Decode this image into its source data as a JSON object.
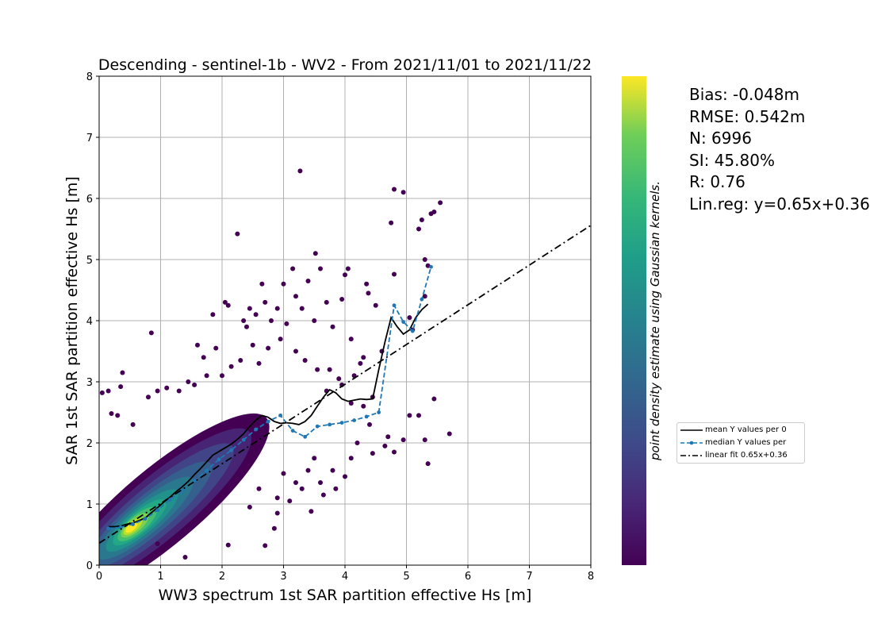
{
  "chart_data": {
    "type": "scatter",
    "title": "Descending - sentinel-1b - WV2 - From 2021/11/01 to 2021/11/22",
    "xlabel": "WW3 spectrum 1st SAR partition effective Hs [m]",
    "ylabel": "SAR 1st SAR partition effective Hs [m]",
    "xlim": [
      0,
      8
    ],
    "ylim": [
      0,
      8
    ],
    "xticks": [
      "0",
      "1",
      "2",
      "3",
      "4",
      "5",
      "6",
      "7",
      "8"
    ],
    "yticks": [
      "0",
      "1",
      "2",
      "3",
      "4",
      "5",
      "6",
      "7",
      "8"
    ],
    "grid": true,
    "colormap": "viridis",
    "colorbar_label": "point density estimate using Gaussian kernels.",
    "colors": {
      "mean_line": "#000000",
      "median_line": "#1f77b4",
      "fit_line": "#000000",
      "grid": "#b0b0b0",
      "low_density": "#440154",
      "high_density": "#fde725"
    },
    "n_points": 6996,
    "outlier_points": [
      [
        0.05,
        2.82
      ],
      [
        0.15,
        2.85
      ],
      [
        0.35,
        2.92
      ],
      [
        0.38,
        3.15
      ],
      [
        0.2,
        2.48
      ],
      [
        0.3,
        2.45
      ],
      [
        0.55,
        2.3
      ],
      [
        0.85,
        3.8
      ],
      [
        0.8,
        2.75
      ],
      [
        0.95,
        2.85
      ],
      [
        1.1,
        2.9
      ],
      [
        1.3,
        2.85
      ],
      [
        1.45,
        3.0
      ],
      [
        1.6,
        3.6
      ],
      [
        1.7,
        3.4
      ],
      [
        1.9,
        3.55
      ],
      [
        1.85,
        4.1
      ],
      [
        2.05,
        4.3
      ],
      [
        2.1,
        4.25
      ],
      [
        2.25,
        5.42
      ],
      [
        2.35,
        4.0
      ],
      [
        2.4,
        3.9
      ],
      [
        2.45,
        4.2
      ],
      [
        2.55,
        4.1
      ],
      [
        2.65,
        4.6
      ],
      [
        2.7,
        4.3
      ],
      [
        2.8,
        4.0
      ],
      [
        2.9,
        4.2
      ],
      [
        3.0,
        4.6
      ],
      [
        3.05,
        3.95
      ],
      [
        3.15,
        4.85
      ],
      [
        3.2,
        4.4
      ],
      [
        3.27,
        6.45
      ],
      [
        3.3,
        4.2
      ],
      [
        3.4,
        4.65
      ],
      [
        3.5,
        4.0
      ],
      [
        3.52,
        5.1
      ],
      [
        3.6,
        4.85
      ],
      [
        3.7,
        4.3
      ],
      [
        3.8,
        3.9
      ],
      [
        3.95,
        4.35
      ],
      [
        4.0,
        4.75
      ],
      [
        4.05,
        4.85
      ],
      [
        4.1,
        3.7
      ],
      [
        4.3,
        3.4
      ],
      [
        4.35,
        4.6
      ],
      [
        4.38,
        4.45
      ],
      [
        4.3,
        2.6
      ],
      [
        4.4,
        2.3
      ],
      [
        4.45,
        1.83
      ],
      [
        4.2,
        2.0
      ],
      [
        4.1,
        1.75
      ],
      [
        3.8,
        1.55
      ],
      [
        3.6,
        1.35
      ],
      [
        3.3,
        1.25
      ],
      [
        3.1,
        1.05
      ],
      [
        2.85,
        0.6
      ],
      [
        2.9,
        0.85
      ],
      [
        2.7,
        0.32
      ],
      [
        2.1,
        0.33
      ],
      [
        1.4,
        0.13
      ],
      [
        0.95,
        0.35
      ],
      [
        3.45,
        0.88
      ],
      [
        2.9,
        1.1
      ],
      [
        4.45,
        2.75
      ],
      [
        4.5,
        4.25
      ],
      [
        4.8,
        6.15
      ],
      [
        4.75,
        5.6
      ],
      [
        4.8,
        4.76
      ],
      [
        4.95,
        6.1
      ],
      [
        5.05,
        4.05
      ],
      [
        5.1,
        3.85
      ],
      [
        5.2,
        5.5
      ],
      [
        5.25,
        5.65
      ],
      [
        5.3,
        5.0
      ],
      [
        5.35,
        4.9
      ],
      [
        5.4,
        5.75
      ],
      [
        5.45,
        5.78
      ],
      [
        5.55,
        5.93
      ],
      [
        5.3,
        4.4
      ],
      [
        5.05,
        2.45
      ],
      [
        5.2,
        2.45
      ],
      [
        4.95,
        2.05
      ],
      [
        5.3,
        2.05
      ],
      [
        5.35,
        1.66
      ],
      [
        5.45,
        2.72
      ],
      [
        5.7,
        2.15
      ],
      [
        4.65,
        1.95
      ],
      [
        4.7,
        2.1
      ],
      [
        4.8,
        1.85
      ],
      [
        3.75,
        3.2
      ],
      [
        3.9,
        3.05
      ],
      [
        4.15,
        3.1
      ],
      [
        4.25,
        3.3
      ],
      [
        4.6,
        3.5
      ],
      [
        2.5,
        3.6
      ],
      [
        2.6,
        3.3
      ],
      [
        2.75,
        3.55
      ],
      [
        2.95,
        3.7
      ],
      [
        3.2,
        3.5
      ],
      [
        3.35,
        3.35
      ],
      [
        3.55,
        3.2
      ],
      [
        3.7,
        2.85
      ],
      [
        2.3,
        3.35
      ],
      [
        2.15,
        3.25
      ],
      [
        2.0,
        3.1
      ],
      [
        1.75,
        3.1
      ],
      [
        1.55,
        2.95
      ],
      [
        3.0,
        1.5
      ],
      [
        3.2,
        1.35
      ],
      [
        3.4,
        1.55
      ],
      [
        3.65,
        1.15
      ],
      [
        3.85,
        1.25
      ],
      [
        4.0,
        1.45
      ],
      [
        3.95,
        2.95
      ],
      [
        4.1,
        2.65
      ],
      [
        3.5,
        1.75
      ],
      [
        2.6,
        1.25
      ],
      [
        2.45,
        0.95
      ]
    ],
    "series": [
      {
        "name": "mean Y values per 0",
        "style": "solid",
        "x": [
          0.15,
          0.25,
          0.35,
          0.45,
          0.55,
          0.65,
          0.75,
          0.85,
          0.95,
          1.05,
          1.15,
          1.25,
          1.35,
          1.45,
          1.55,
          1.65,
          1.75,
          1.85,
          1.95,
          2.05,
          2.15,
          2.25,
          2.35,
          2.45,
          2.55,
          2.65,
          2.75,
          2.85,
          2.95,
          3.05,
          3.15,
          3.25,
          3.35,
          3.45,
          3.55,
          3.65,
          3.75,
          3.85,
          3.95,
          4.05,
          4.15,
          4.25,
          4.35,
          4.45,
          4.55,
          4.65,
          4.75,
          4.85,
          4.95,
          5.05,
          5.15,
          5.25,
          5.35
        ],
        "y": [
          0.63,
          0.63,
          0.64,
          0.67,
          0.69,
          0.73,
          0.77,
          0.86,
          0.94,
          1.03,
          1.11,
          1.2,
          1.28,
          1.37,
          1.48,
          1.58,
          1.69,
          1.8,
          1.86,
          1.92,
          1.98,
          2.06,
          2.15,
          2.27,
          2.37,
          2.45,
          2.42,
          2.35,
          2.32,
          2.33,
          2.32,
          2.3,
          2.35,
          2.45,
          2.6,
          2.75,
          2.87,
          2.82,
          2.72,
          2.68,
          2.7,
          2.72,
          2.71,
          2.72,
          3.2,
          3.65,
          4.05,
          3.9,
          3.78,
          3.85,
          4.05,
          4.18,
          4.27
        ]
      },
      {
        "name": "median Y values per",
        "style": "dashed",
        "x": [
          0.15,
          0.35,
          0.55,
          0.75,
          0.95,
          1.15,
          1.35,
          1.55,
          1.75,
          1.95,
          2.15,
          2.35,
          2.55,
          2.75,
          2.95,
          3.15,
          3.35,
          3.55,
          3.75,
          3.95,
          4.15,
          4.35,
          4.55,
          4.8,
          4.95,
          5.1,
          5.25,
          5.4
        ],
        "y": [
          0.6,
          0.62,
          0.67,
          0.76,
          0.9,
          1.07,
          1.22,
          1.38,
          1.55,
          1.73,
          1.88,
          2.05,
          2.22,
          2.35,
          2.45,
          2.2,
          2.1,
          2.27,
          2.3,
          2.33,
          2.37,
          2.43,
          2.5,
          4.25,
          3.98,
          3.83,
          4.35,
          4.88
        ]
      },
      {
        "name": "linear fit 0.65x+0.36",
        "style": "dashdot",
        "slope": 0.65,
        "intercept": 0.36,
        "x": [
          0,
          8
        ],
        "y": [
          0.36,
          5.56
        ]
      }
    ]
  },
  "stats": {
    "bias": "Bias: -0.048m",
    "rmse": "RMSE: 0.542m",
    "n": "N: 6996",
    "si": "SI: 45.80%",
    "r": "R: 0.76",
    "linreg": "Lin.reg: y=0.65x+0.36"
  },
  "legend": {
    "mean": "mean Y values per 0",
    "median": "median Y values per",
    "fit": "linear fit 0.65x+0.36"
  }
}
